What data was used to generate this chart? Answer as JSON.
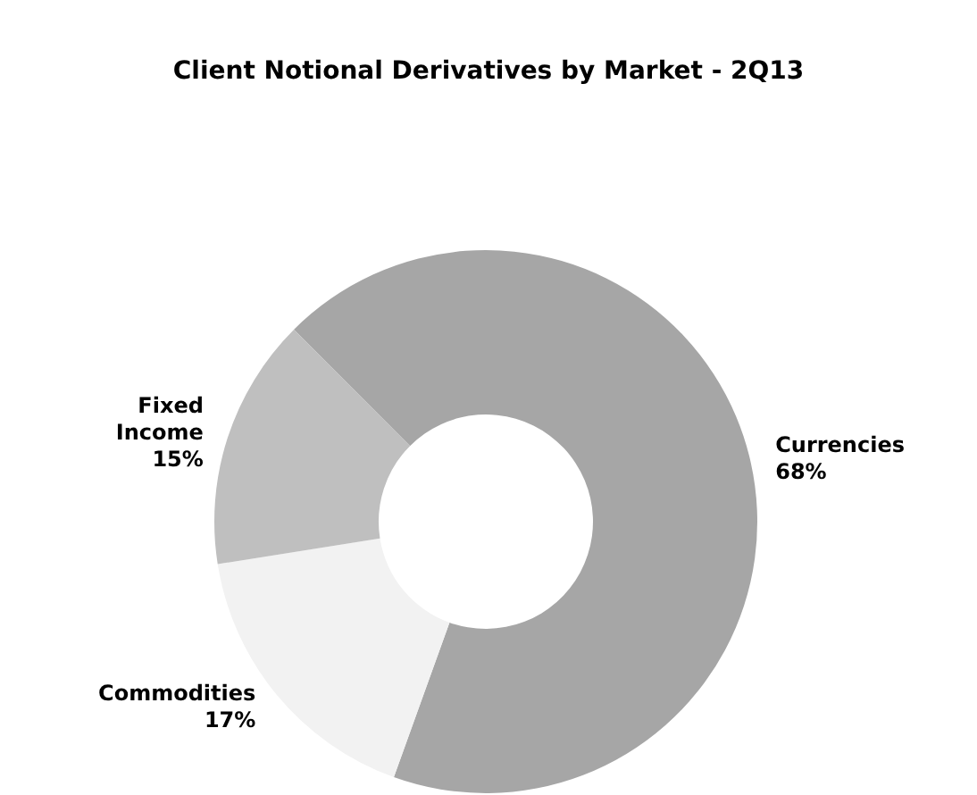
{
  "chart_data": {
    "type": "donut",
    "title": "Client Notional Derivatives by Market - 2Q13",
    "categories": [
      "Currencies",
      "Commodities",
      "Fixed Income"
    ],
    "values": [
      68,
      17,
      15
    ],
    "colors": [
      "#a6a6a6",
      "#f2f2f2",
      "#bfbfbf"
    ],
    "value_labels": [
      "68%",
      "17%",
      "15%"
    ],
    "legend": false
  }
}
